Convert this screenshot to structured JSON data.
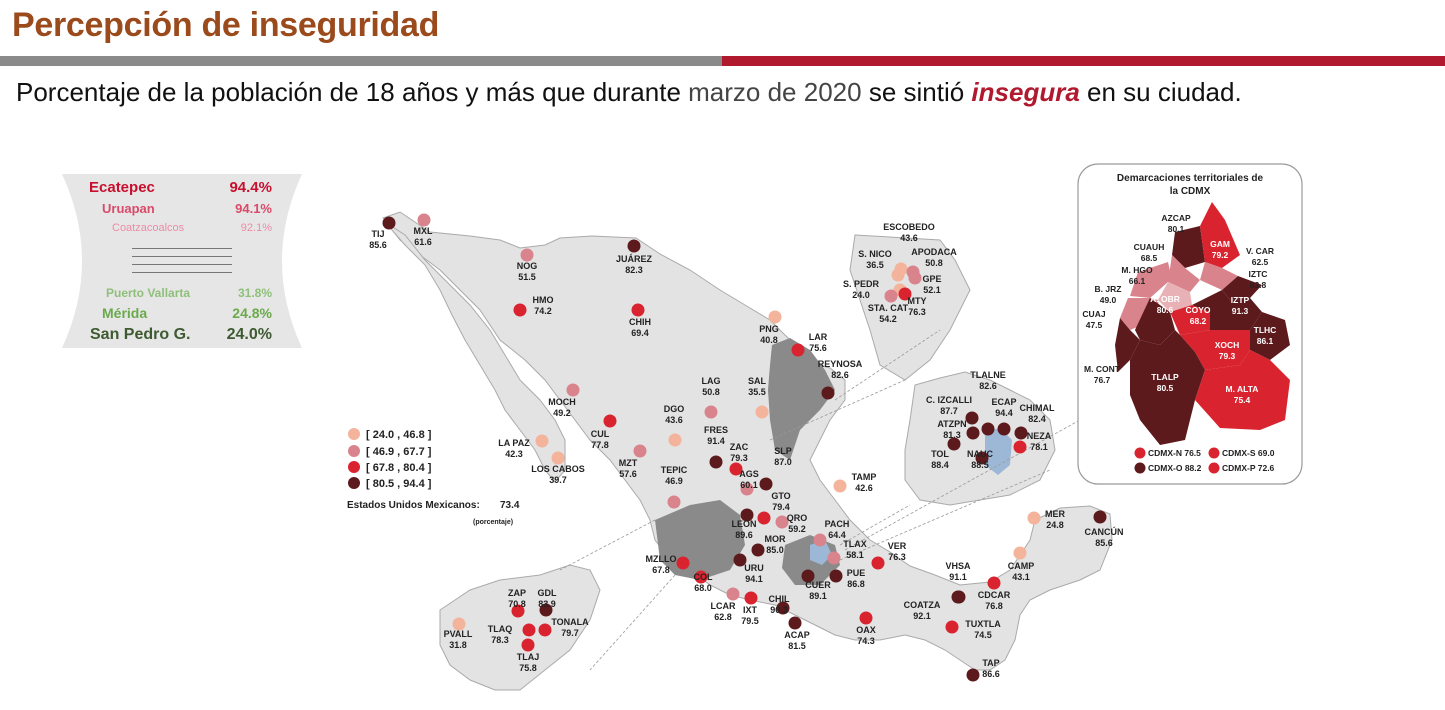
{
  "title": "Percepción de inseguridad",
  "subtitle": {
    "part1": "Porcentaje de la población de 18 años y más que durante ",
    "part2": "marzo de 2020",
    "part3": " se sintió ",
    "highlight": "insegura",
    "part4": " en su ciudad."
  },
  "ranking": {
    "top": [
      {
        "name": "Ecatepec",
        "value": "94.4%",
        "color": "#c8102e"
      },
      {
        "name": "Uruapan",
        "value": "94.1%",
        "color": "#d94a6a"
      },
      {
        "name": "Coatzacoalcos",
        "value": "92.1%",
        "color": "#ee8aa8"
      }
    ],
    "bottom": [
      {
        "name": "Puerto Vallarta",
        "value": "31.8%",
        "color": "#8fbf7a"
      },
      {
        "name": "Mérida",
        "value": "24.8%",
        "color": "#6aaa4c"
      },
      {
        "name": "San Pedro G.",
        "value": "24.0%",
        "color": "#3d5a30"
      }
    ]
  },
  "legend": {
    "ranges": [
      {
        "label": "[ 24.0 , 46.8 ]",
        "color": "#f4b39b"
      },
      {
        "label": "[ 46.9 , 67.7 ]",
        "color": "#d9838c"
      },
      {
        "label": "[ 67.8 , 80.4 ]",
        "color": "#d9242f"
      },
      {
        "label": "[ 80.5 , 94.4 ]",
        "color": "#5c1a1d"
      }
    ],
    "national_label": "Estados Unidos Mexicanos:",
    "national_value": "73.4",
    "national_unit": "(porcentaje)"
  },
  "cdmx": {
    "title": "Demarcaciones territoriales de la CDMX",
    "title_line1": "Demarcaciones territoriales de",
    "title_line2": "la CDMX",
    "districts": [
      {
        "name": "AZCAP",
        "value": "80.1"
      },
      {
        "name": "GAM",
        "value": "79.2"
      },
      {
        "name": "CUAUH",
        "value": "68.5"
      },
      {
        "name": "V. CAR",
        "value": "62.5"
      },
      {
        "name": "M. HGO",
        "value": "66.1"
      },
      {
        "name": "IZTC",
        "value": "83.8"
      },
      {
        "name": "B. JRZ",
        "value": "49.0"
      },
      {
        "name": "A. OBR",
        "value": "80.6"
      },
      {
        "name": "IZTP",
        "value": "91.3"
      },
      {
        "name": "CUAJ",
        "value": "47.5"
      },
      {
        "name": "COYO",
        "value": "68.2"
      },
      {
        "name": "TLHC",
        "value": "86.1"
      },
      {
        "name": "M. CONT",
        "value": "76.7"
      },
      {
        "name": "XOCH",
        "value": "79.3"
      },
      {
        "name": "TLALP",
        "value": "80.5"
      },
      {
        "name": "M. ALTA",
        "value": "75.4"
      }
    ],
    "zones": [
      {
        "label": "CDMX-N 76.5",
        "color": "#d9242f"
      },
      {
        "label": "CDMX-S 69.0",
        "color": "#d9242f"
      },
      {
        "label": "CDMX-O 88.2",
        "color": "#5c1a1d"
      },
      {
        "label": "CDMX-P 72.6",
        "color": "#d9242f"
      }
    ]
  },
  "cities": [
    {
      "name": "TIJ",
      "value": "85.6",
      "cls": 3
    },
    {
      "name": "MXL",
      "value": "61.6",
      "cls": 1
    },
    {
      "name": "NOG",
      "value": "51.5",
      "cls": 1
    },
    {
      "name": "JUÁREZ",
      "value": "82.3",
      "cls": 3
    },
    {
      "name": "HMO",
      "value": "74.2",
      "cls": 2
    },
    {
      "name": "CHIH",
      "value": "69.4",
      "cls": 2
    },
    {
      "name": "PNG",
      "value": "40.8",
      "cls": 0
    },
    {
      "name": "LAR",
      "value": "75.6",
      "cls": 2
    },
    {
      "name": "REYNOSA",
      "value": "82.6",
      "cls": 3
    },
    {
      "name": "MOCH",
      "value": "49.2",
      "cls": 1
    },
    {
      "name": "LAG",
      "value": "50.8",
      "cls": 1
    },
    {
      "name": "SAL",
      "value": "35.5",
      "cls": 0
    },
    {
      "name": "DGO",
      "value": "43.6",
      "cls": 0
    },
    {
      "name": "CUL",
      "value": "77.8",
      "cls": 2
    },
    {
      "name": "LA PAZ",
      "value": "42.3",
      "cls": 0
    },
    {
      "name": "LOS CABOS",
      "value": "39.7",
      "cls": 0
    },
    {
      "name": "MZT",
      "value": "57.6",
      "cls": 1
    },
    {
      "name": "FRES",
      "value": "91.4",
      "cls": 3
    },
    {
      "name": "ZAC",
      "value": "79.3",
      "cls": 2
    },
    {
      "name": "TEPIC",
      "value": "46.9",
      "cls": 1
    },
    {
      "name": "AGS",
      "value": "60.1",
      "cls": 1
    },
    {
      "name": "SLP",
      "value": "87.0",
      "cls": 3
    },
    {
      "name": "TAMP",
      "value": "42.6",
      "cls": 0
    },
    {
      "name": "GTO",
      "value": "79.4",
      "cls": 2
    },
    {
      "name": "LEON",
      "value": "89.6",
      "cls": 3
    },
    {
      "name": "QRO",
      "value": "59.2",
      "cls": 1
    },
    {
      "name": "PACH",
      "value": "64.4",
      "cls": 1
    },
    {
      "name": "MOR",
      "value": "85.0",
      "cls": 3
    },
    {
      "name": "TLAX",
      "value": "58.1",
      "cls": 1
    },
    {
      "name": "MZLLO",
      "value": "67.8",
      "cls": 2
    },
    {
      "name": "URU",
      "value": "94.1",
      "cls": 3
    },
    {
      "name": "VER",
      "value": "76.3",
      "cls": 2
    },
    {
      "name": "PUE",
      "value": "86.8",
      "cls": 3
    },
    {
      "name": "COL",
      "value": "68.0",
      "cls": 2
    },
    {
      "name": "CUER",
      "value": "89.1",
      "cls": 3
    },
    {
      "name": "LCAR",
      "value": "62.8",
      "cls": 1
    },
    {
      "name": "IXT",
      "value": "79.5",
      "cls": 2
    },
    {
      "name": "CHIL",
      "value": "90.3",
      "cls": 3
    },
    {
      "name": "OAX",
      "value": "74.3",
      "cls": 2
    },
    {
      "name": "ACAP",
      "value": "81.5",
      "cls": 3
    },
    {
      "name": "COATZA",
      "value": "92.1",
      "cls": 3
    },
    {
      "name": "VHSA",
      "value": "91.1",
      "cls": 3
    },
    {
      "name": "CAMP",
      "value": "43.1",
      "cls": 0
    },
    {
      "name": "CDCAR",
      "value": "76.8",
      "cls": 2
    },
    {
      "name": "TUXTLA",
      "value": "74.5",
      "cls": 2
    },
    {
      "name": "TAP",
      "value": "86.6",
      "cls": 3
    },
    {
      "name": "MER",
      "value": "24.8",
      "cls": 0
    },
    {
      "name": "CANCÚN",
      "value": "85.6",
      "cls": 3
    },
    {
      "name": "PVALL",
      "value": "31.8",
      "cls": 0
    },
    {
      "name": "ZAP",
      "value": "70.8",
      "cls": 2
    },
    {
      "name": "GDL",
      "value": "83.9",
      "cls": 3
    },
    {
      "name": "TLAQ",
      "value": "78.3",
      "cls": 2
    },
    {
      "name": "TONALA",
      "value": "79.7",
      "cls": 2
    },
    {
      "name": "TLAJ",
      "value": "75.8",
      "cls": 2
    },
    {
      "name": "ESCOBEDO",
      "value": "43.6",
      "cls": 0
    },
    {
      "name": "S. NICO",
      "value": "36.5",
      "cls": 0
    },
    {
      "name": "APODACA",
      "value": "50.8",
      "cls": 1
    },
    {
      "name": "S. PEDR",
      "value": "24.0",
      "cls": 0
    },
    {
      "name": "GPE",
      "value": "52.1",
      "cls": 1
    },
    {
      "name": "MTY",
      "value": "76.3",
      "cls": 2
    },
    {
      "name": "STA. CAT",
      "value": "54.2",
      "cls": 1
    },
    {
      "name": "TLALNE",
      "value": "82.6",
      "cls": 3
    },
    {
      "name": "C. IZCALLI",
      "value": "87.7",
      "cls": 3
    },
    {
      "name": "ECAP",
      "value": "94.4",
      "cls": 3
    },
    {
      "name": "CHIMAL",
      "value": "82.4",
      "cls": 3
    },
    {
      "name": "ATZPN",
      "value": "81.3",
      "cls": 3
    },
    {
      "name": "NEZA",
      "value": "78.1",
      "cls": 2
    },
    {
      "name": "TOL",
      "value": "88.4",
      "cls": 3
    },
    {
      "name": "NAUC",
      "value": "88.5",
      "cls": 3
    }
  ]
}
